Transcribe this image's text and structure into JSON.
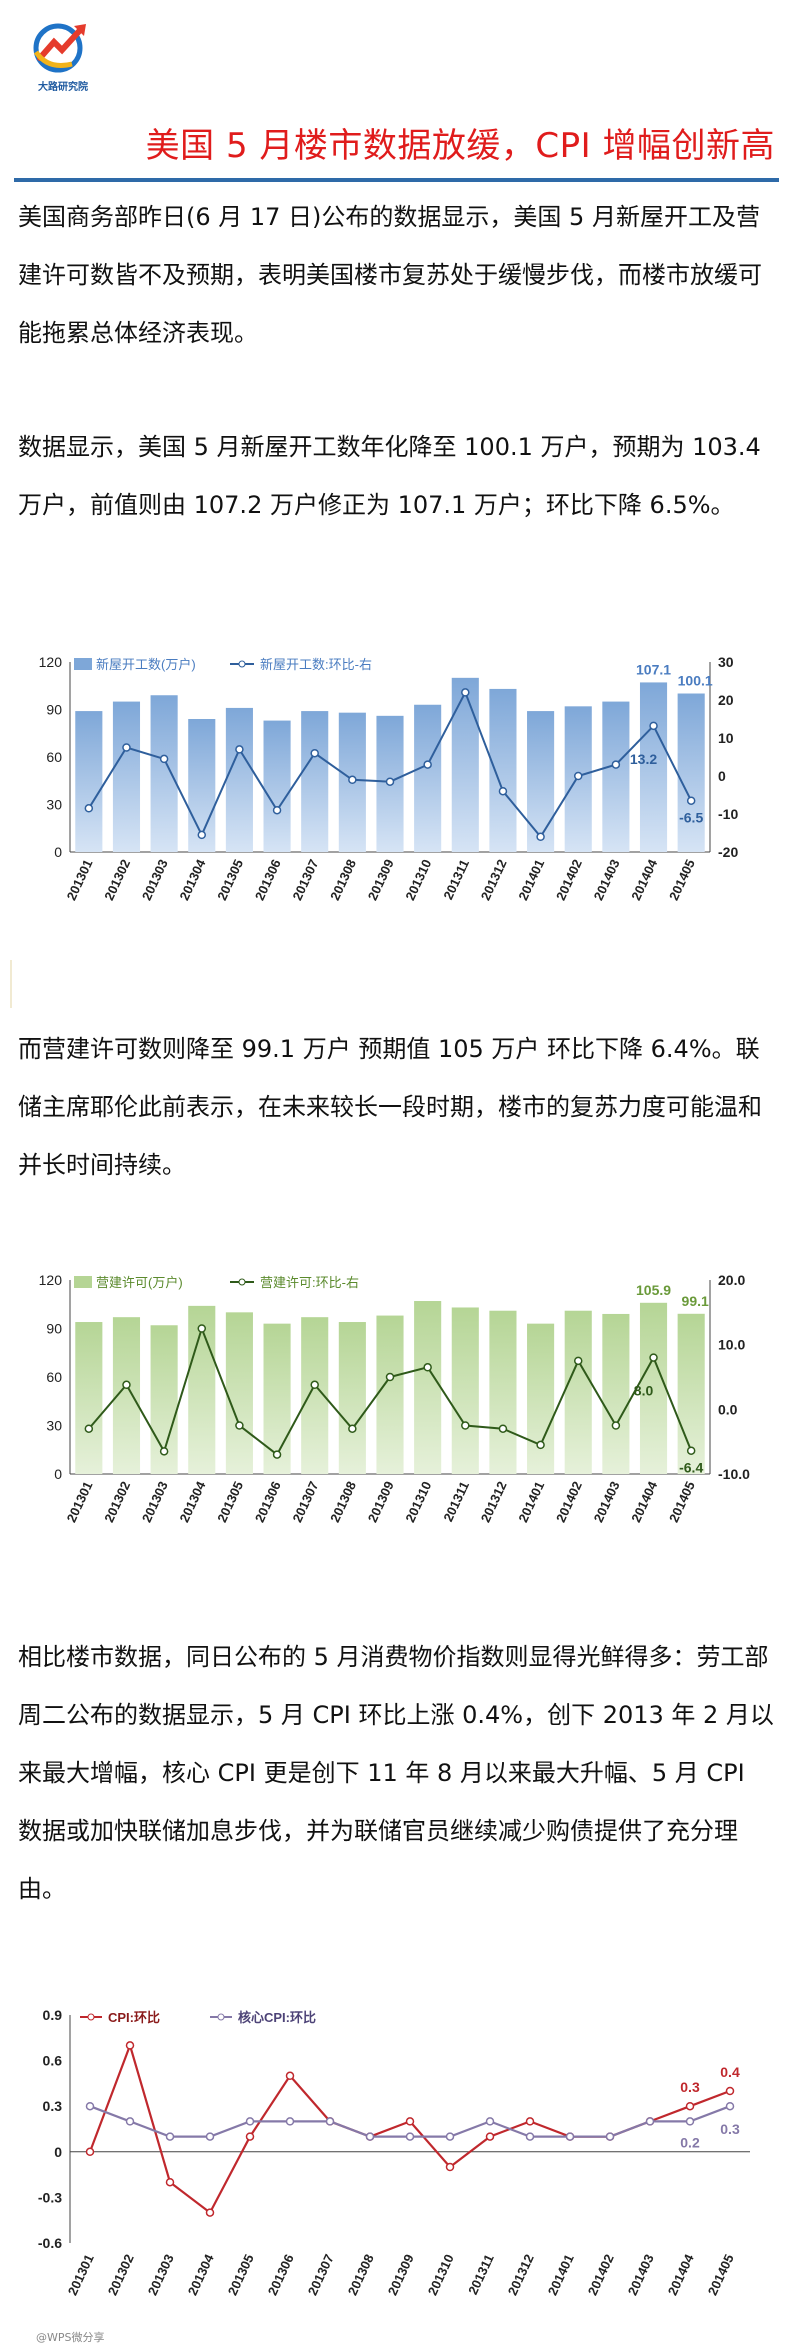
{
  "header": {
    "logo_text": "大路研究院",
    "title": "美国 5 月楼市数据放缓，CPI 增幅创新高"
  },
  "paragraphs": {
    "p1": "美国商务部昨日(6 月 17 日)公布的数据显示，美国 5 月新屋开工及营建许可数皆不及预期，表明美国楼市复苏处于缓慢步伐，而楼市放缓可能拖累总体经济表现。",
    "p2": "数据显示，美国 5 月新屋开工数年化降至 100.1 万户，预期为 103.4 万户，前值则由 107.2 万户修正为 107.1 万户；环比下降 6.5%。",
    "p3": "而营建许可数则降至 99.1 万户  预期值 105 万户  环比下降 6.4%。联储主席耶伦此前表示，在未来较长一段时期，楼市的复苏力度可能温和并长时间持续。",
    "p4": "相比楼市数据，同日公布的 5 月消费物价指数则显得光鲜得多：劳工部周二公布的数据显示，5 月 CPI 环比上涨 0.4%，创下 2013 年 2 月以来最大增幅，核心 CPI 更是创下 11 年 8 月以来最大升幅、5 月 CPI 数据或加快联储加息步伐，并为联储官员继续减少购债提供了充分理由。"
  },
  "footer": {
    "watermark": "@WPS微分享"
  },
  "colors": {
    "title_red": "#e01c1c",
    "rule_blue": "#2e6aa8",
    "bar_blue": "#7ea7d8",
    "line_blue": "#2f5f9c",
    "bar_green": "#b7d69a",
    "line_green": "#2f5a1a",
    "cpi_red": "#c0282d",
    "core_purple": "#8579a8"
  },
  "chart_data": [
    {
      "type": "bar",
      "categories": [
        "201301",
        "201302",
        "201303",
        "201304",
        "201305",
        "201306",
        "201307",
        "201308",
        "201309",
        "201310",
        "201311",
        "201312",
        "201401",
        "201402",
        "201403",
        "201404",
        "201405"
      ],
      "series": [
        {
          "name": "新屋开工数(万户)",
          "type": "bar",
          "axis": "left",
          "values": [
            89,
            95,
            99,
            84,
            91,
            83,
            89,
            88,
            86,
            93,
            110,
            103,
            89,
            92,
            95,
            107.1,
            100.1
          ]
        },
        {
          "name": "新屋开工数:环比-右",
          "type": "line",
          "axis": "right",
          "values": [
            -8.5,
            7.5,
            4.5,
            -15.5,
            7.0,
            -9.0,
            6.0,
            -1.0,
            -1.5,
            3.0,
            22.0,
            -4.0,
            -16.0,
            0.0,
            3.0,
            13.2,
            -6.5
          ]
        }
      ],
      "ylim_left": [
        0,
        120
      ],
      "yticks_left": [
        0,
        30,
        60,
        90,
        120
      ],
      "ylim_right": [
        -20,
        30
      ],
      "yticks_right": [
        -20,
        -10,
        0,
        10,
        20,
        30
      ],
      "annotations": [
        "107.1",
        "100.1",
        "13.2",
        "-6.5"
      ],
      "legend": "top-left"
    },
    {
      "type": "bar",
      "categories": [
        "201301",
        "201302",
        "201303",
        "201304",
        "201305",
        "201306",
        "201307",
        "201308",
        "201309",
        "201310",
        "201311",
        "201312",
        "201401",
        "201402",
        "201403",
        "201404",
        "201405"
      ],
      "series": [
        {
          "name": "营建许可(万户)",
          "type": "bar",
          "axis": "left",
          "values": [
            94,
            97,
            92,
            104,
            100,
            93,
            97,
            94,
            98,
            107,
            103,
            101,
            93,
            101,
            99,
            105.9,
            99.1
          ]
        },
        {
          "name": "营建许可:环比-右",
          "type": "line",
          "axis": "right",
          "values": [
            -3.0,
            3.8,
            -6.5,
            12.5,
            -2.5,
            -7.0,
            3.8,
            -3.0,
            5.0,
            6.5,
            -2.5,
            -3.0,
            -5.5,
            7.5,
            -2.5,
            8.0,
            -6.4
          ]
        }
      ],
      "ylim_left": [
        0,
        120
      ],
      "yticks_left": [
        0,
        30,
        60,
        90,
        120
      ],
      "ylim_right": [
        -10,
        20
      ],
      "yticks_right": [
        "-10.0",
        "0.0",
        "10.0",
        "20.0"
      ],
      "annotations": [
        "105.9",
        "99.1",
        "8.0",
        "-6.4"
      ],
      "legend": "top-left"
    },
    {
      "type": "line",
      "categories": [
        "201301",
        "201302",
        "201303",
        "201304",
        "201305",
        "201306",
        "201307",
        "201308",
        "201309",
        "201310",
        "201311",
        "201312",
        "201401",
        "201402",
        "201403",
        "201404",
        "201405"
      ],
      "series": [
        {
          "name": "CPI:环比",
          "values": [
            0.0,
            0.7,
            -0.2,
            -0.4,
            0.1,
            0.5,
            0.2,
            0.1,
            0.2,
            -0.1,
            0.1,
            0.2,
            0.1,
            0.1,
            0.2,
            0.3,
            0.4
          ]
        },
        {
          "name": "核心CPI:环比",
          "values": [
            0.3,
            0.2,
            0.1,
            0.1,
            0.2,
            0.2,
            0.2,
            0.1,
            0.1,
            0.1,
            0.2,
            0.1,
            0.1,
            0.1,
            0.2,
            0.2,
            0.3
          ]
        }
      ],
      "ylim": [
        -0.6,
        0.9
      ],
      "yticks": [
        "-0.6",
        "-0.3",
        "0",
        "0.3",
        "0.6",
        "0.9"
      ],
      "annotations": [
        "0.3",
        "0.4",
        "0.2",
        "0.3"
      ],
      "legend": "top-left"
    }
  ]
}
